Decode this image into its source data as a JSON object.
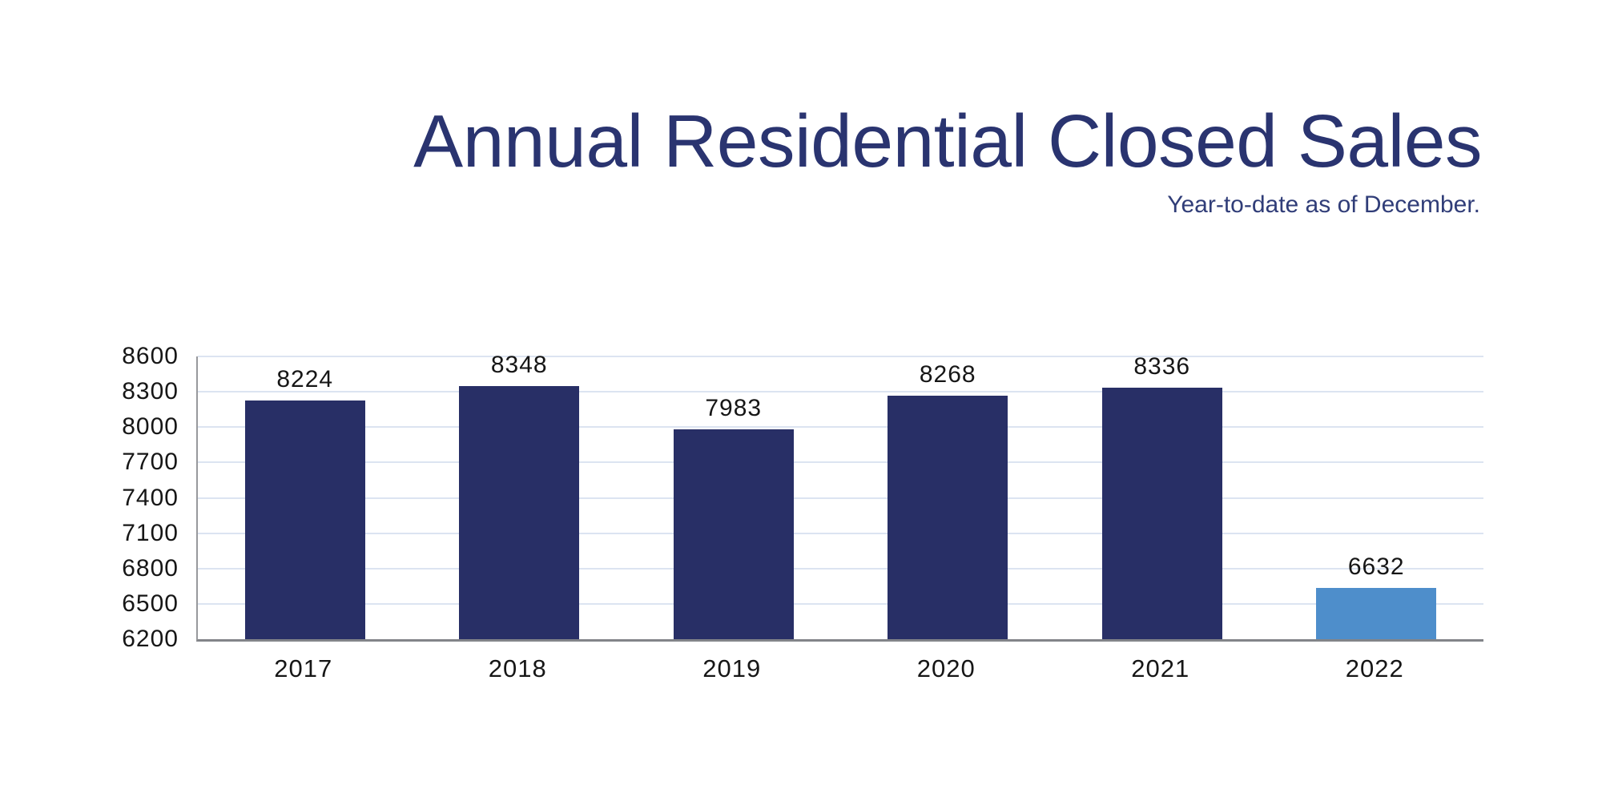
{
  "header": {
    "title": "Annual Residential Closed Sales",
    "subtitle": "Year-to-date as of December."
  },
  "colors": {
    "title_text": "#2a3470",
    "subtitle_text": "#303d78",
    "bar_primary": "#282f66",
    "bar_highlight": "#4e8ecb",
    "gridline": "#dce4f1",
    "axis_line_left": "#98999c",
    "axis_line_bottom": "#828489",
    "label_text": "#161616",
    "background": "#ffffff"
  },
  "chart_data": {
    "type": "bar",
    "title": "Annual Residential Closed Sales",
    "subtitle": "Year-to-date as of December.",
    "categories": [
      "2017",
      "2018",
      "2019",
      "2020",
      "2021",
      "2022"
    ],
    "values": [
      8224,
      8348,
      7983,
      8268,
      8336,
      6632
    ],
    "data_labels": [
      "8224",
      "8348",
      "7983",
      "8268",
      "8336",
      "6632"
    ],
    "highlighted_category": "2022",
    "series_colors": {
      "default": "#282f66",
      "highlight": "#4e8ecb"
    },
    "xlabel": "",
    "ylabel": "",
    "y_axis": {
      "min": 6200,
      "max": 8600,
      "step": 300,
      "tick_labels": [
        "6200",
        "6500",
        "6800",
        "7100",
        "7400",
        "7700",
        "8000",
        "8300",
        "8600"
      ]
    },
    "grid": true,
    "legend_position": "none"
  }
}
